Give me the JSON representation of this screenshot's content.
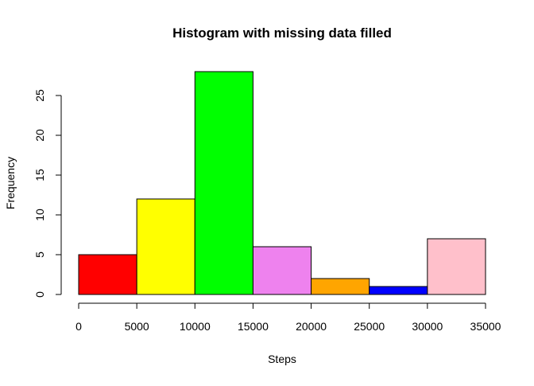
{
  "chart_data": {
    "type": "bar",
    "subtype": "histogram",
    "title": "Histogram with missing data filled",
    "xlabel": "Steps",
    "ylabel": "Frequency",
    "bins": [
      {
        "start": 0,
        "end": 5000,
        "value": 5,
        "color": "#ff0000"
      },
      {
        "start": 5000,
        "end": 10000,
        "value": 12,
        "color": "#ffff00"
      },
      {
        "start": 10000,
        "end": 15000,
        "value": 28,
        "color": "#00ff00"
      },
      {
        "start": 15000,
        "end": 20000,
        "value": 6,
        "color": "#ee82ee"
      },
      {
        "start": 20000,
        "end": 25000,
        "value": 2,
        "color": "#ffa500"
      },
      {
        "start": 25000,
        "end": 30000,
        "value": 1,
        "color": "#0000ff"
      },
      {
        "start": 30000,
        "end": 35000,
        "value": 7,
        "color": "#ffc0cb"
      }
    ],
    "xlim": [
      0,
      35000
    ],
    "ylim": [
      0,
      28
    ],
    "x_ticks": [
      0,
      5000,
      10000,
      15000,
      20000,
      25000,
      30000,
      35000
    ],
    "y_ticks": [
      0,
      5,
      10,
      15,
      20,
      25
    ],
    "grid": false,
    "legend": "none"
  }
}
